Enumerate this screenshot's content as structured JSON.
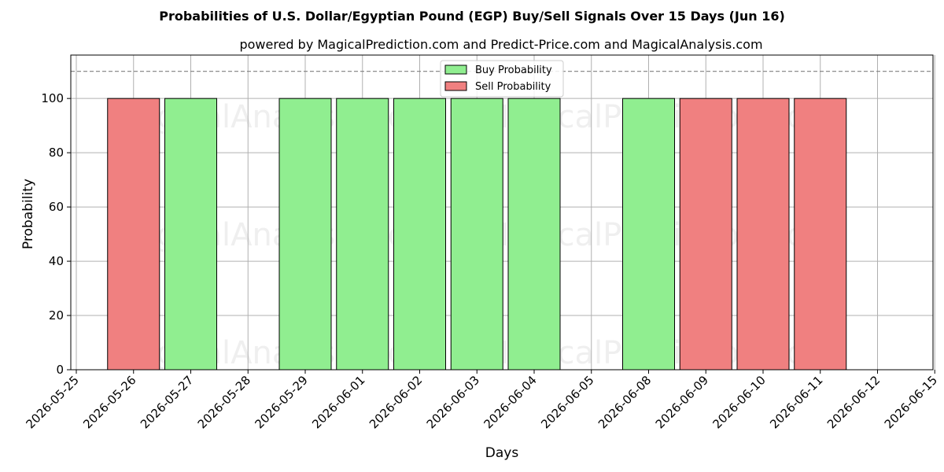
{
  "chart_data": {
    "type": "bar",
    "title": "Probabilities of U.S. Dollar/Egyptian Pound (EGP) Buy/Sell Signals Over 15 Days (Jun 16)",
    "subtitle": "powered by MagicalPrediction.com and Predict-Price.com and MagicalAnalysis.com",
    "xlabel": "Days",
    "ylabel": "Probability",
    "ylim": [
      0,
      116
    ],
    "yticks": [
      0,
      20,
      40,
      60,
      80,
      100
    ],
    "threshold_line": 110,
    "grid": true,
    "legend_position": "top-center",
    "categories": [
      "2026-05-25",
      "2026-05-26",
      "2026-05-27",
      "2026-05-28",
      "2026-05-29",
      "2026-06-01",
      "2026-06-02",
      "2026-06-03",
      "2026-06-04",
      "2026-06-05",
      "2026-06-08",
      "2026-06-09",
      "2026-06-10",
      "2026-06-11",
      "2026-06-12",
      "2026-06-15"
    ],
    "series": [
      {
        "name": "Buy Probability",
        "color": "#90ee90",
        "values": [
          0,
          0,
          100,
          0,
          100,
          100,
          100,
          100,
          100,
          0,
          100,
          0,
          0,
          0,
          0,
          0
        ]
      },
      {
        "name": "Sell Probability",
        "color": "#f08080",
        "values": [
          0,
          100,
          0,
          0,
          0,
          0,
          0,
          0,
          0,
          0,
          0,
          100,
          100,
          100,
          0,
          0
        ]
      }
    ],
    "watermarks": [
      "MagicalAnalysis.com",
      "MagicalPrediction.com"
    ]
  }
}
